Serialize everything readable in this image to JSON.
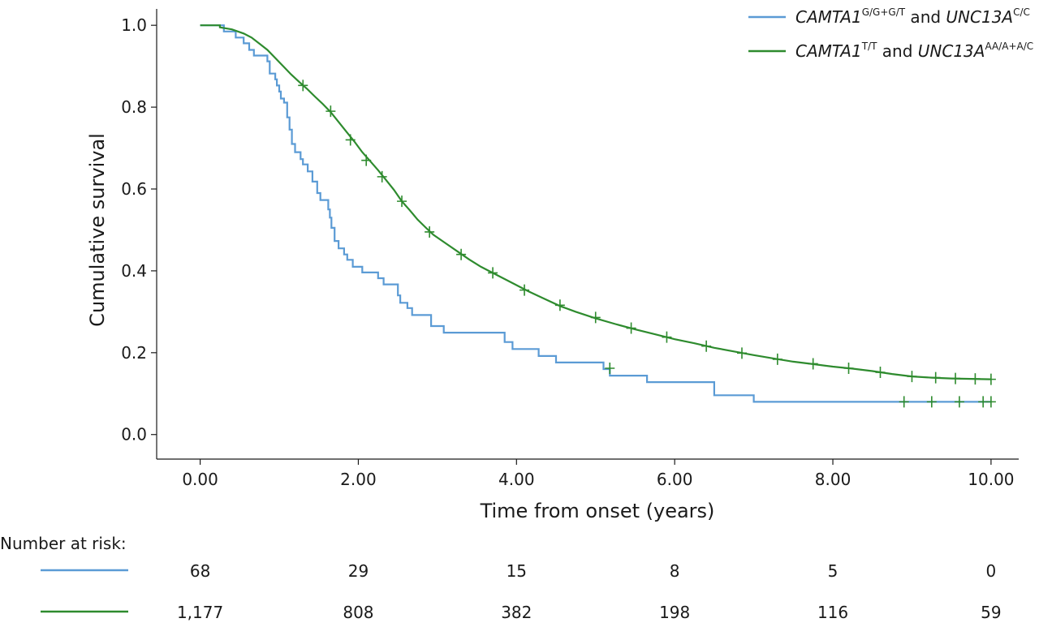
{
  "colors": {
    "series_blue": "#5b9bd5",
    "series_green": "#2e8b2e",
    "axis": "#1a1a1a",
    "background": "#ffffff"
  },
  "chart_data": {
    "type": "line",
    "subtype": "kaplan-meier-step",
    "title": "",
    "xlabel": "Time from onset (years)",
    "ylabel": "Cumulative survival",
    "xlim": [
      -0.55,
      10.35
    ],
    "ylim": [
      -0.06,
      1.04
    ],
    "x_ticks": [
      0,
      2,
      4,
      6,
      8,
      10
    ],
    "x_tick_labels": [
      "0.00",
      "2.00",
      "4.00",
      "6.00",
      "8.00",
      "10.00"
    ],
    "y_ticks": [
      0.0,
      0.2,
      0.4,
      0.6,
      0.8,
      1.0
    ],
    "y_tick_labels": [
      "0.0",
      "0.2",
      "0.4",
      "0.6",
      "0.8",
      "1.0"
    ],
    "grid": false,
    "legend_position": "top-right",
    "series": [
      {
        "id": "blue",
        "color": "#5b9bd5",
        "legend": {
          "gene1": "CAMTA1",
          "gene1_sup": "G/G+G/T",
          "joiner": " and ",
          "gene2": "UNC13A",
          "gene2_sup": "C/C"
        },
        "points": [
          [
            0,
            1.0
          ],
          [
            0.3,
            1.0
          ],
          [
            0.3,
            0.985
          ],
          [
            0.45,
            0.985
          ],
          [
            0.45,
            0.97
          ],
          [
            0.55,
            0.97
          ],
          [
            0.55,
            0.956
          ],
          [
            0.62,
            0.956
          ],
          [
            0.62,
            0.94
          ],
          [
            0.68,
            0.94
          ],
          [
            0.68,
            0.926
          ],
          [
            0.85,
            0.926
          ],
          [
            0.85,
            0.912
          ],
          [
            0.88,
            0.912
          ],
          [
            0.88,
            0.882
          ],
          [
            0.95,
            0.882
          ],
          [
            0.95,
            0.868
          ],
          [
            0.97,
            0.868
          ],
          [
            0.97,
            0.853
          ],
          [
            1.0,
            0.853
          ],
          [
            1.0,
            0.838
          ],
          [
            1.02,
            0.838
          ],
          [
            1.02,
            0.821
          ],
          [
            1.06,
            0.821
          ],
          [
            1.06,
            0.811
          ],
          [
            1.1,
            0.811
          ],
          [
            1.1,
            0.775
          ],
          [
            1.13,
            0.775
          ],
          [
            1.13,
            0.745
          ],
          [
            1.16,
            0.745
          ],
          [
            1.16,
            0.71
          ],
          [
            1.2,
            0.71
          ],
          [
            1.2,
            0.69
          ],
          [
            1.27,
            0.69
          ],
          [
            1.27,
            0.673
          ],
          [
            1.3,
            0.673
          ],
          [
            1.3,
            0.66
          ],
          [
            1.36,
            0.66
          ],
          [
            1.36,
            0.643
          ],
          [
            1.42,
            0.643
          ],
          [
            1.42,
            0.618
          ],
          [
            1.48,
            0.618
          ],
          [
            1.48,
            0.59
          ],
          [
            1.52,
            0.59
          ],
          [
            1.52,
            0.573
          ],
          [
            1.62,
            0.573
          ],
          [
            1.62,
            0.55
          ],
          [
            1.64,
            0.55
          ],
          [
            1.64,
            0.53
          ],
          [
            1.66,
            0.53
          ],
          [
            1.66,
            0.505
          ],
          [
            1.7,
            0.505
          ],
          [
            1.7,
            0.473
          ],
          [
            1.75,
            0.473
          ],
          [
            1.75,
            0.455
          ],
          [
            1.82,
            0.455
          ],
          [
            1.82,
            0.44
          ],
          [
            1.86,
            0.44
          ],
          [
            1.86,
            0.427
          ],
          [
            1.93,
            0.427
          ],
          [
            1.93,
            0.41
          ],
          [
            2.05,
            0.41
          ],
          [
            2.05,
            0.396
          ],
          [
            2.25,
            0.396
          ],
          [
            2.25,
            0.382
          ],
          [
            2.32,
            0.382
          ],
          [
            2.32,
            0.367
          ],
          [
            2.5,
            0.367
          ],
          [
            2.5,
            0.34
          ],
          [
            2.53,
            0.34
          ],
          [
            2.53,
            0.322
          ],
          [
            2.62,
            0.322
          ],
          [
            2.62,
            0.309
          ],
          [
            2.68,
            0.309
          ],
          [
            2.68,
            0.292
          ],
          [
            2.92,
            0.292
          ],
          [
            2.92,
            0.265
          ],
          [
            3.08,
            0.265
          ],
          [
            3.08,
            0.249
          ],
          [
            3.85,
            0.249
          ],
          [
            3.85,
            0.226
          ],
          [
            3.95,
            0.226
          ],
          [
            3.95,
            0.209
          ],
          [
            4.28,
            0.209
          ],
          [
            4.28,
            0.192
          ],
          [
            4.5,
            0.192
          ],
          [
            4.5,
            0.176
          ],
          [
            5.1,
            0.176
          ],
          [
            5.1,
            0.16
          ],
          [
            5.18,
            0.16
          ],
          [
            5.18,
            0.144
          ],
          [
            5.65,
            0.144
          ],
          [
            5.65,
            0.128
          ],
          [
            6.5,
            0.128
          ],
          [
            6.5,
            0.096
          ],
          [
            7.0,
            0.096
          ],
          [
            7.0,
            0.08
          ],
          [
            10.0,
            0.08
          ]
        ],
        "censor_marks": [
          [
            5.18,
            0.162
          ],
          [
            8.9,
            0.08
          ],
          [
            9.25,
            0.08
          ],
          [
            9.6,
            0.08
          ],
          [
            9.9,
            0.08
          ],
          [
            10.0,
            0.08
          ]
        ]
      },
      {
        "id": "green",
        "color": "#2e8b2e",
        "legend": {
          "gene1": "CAMTA1",
          "gene1_sup": "T/T",
          "joiner": " and ",
          "gene2": "UNC13A",
          "gene2_sup": "AA/A+A/C"
        },
        "points": [
          [
            0,
            1.0
          ],
          [
            0.25,
            1.0
          ],
          [
            0.25,
            0.995
          ],
          [
            0.4,
            0.99
          ],
          [
            0.55,
            0.98
          ],
          [
            0.65,
            0.97
          ],
          [
            0.75,
            0.955
          ],
          [
            0.85,
            0.94
          ],
          [
            0.95,
            0.92
          ],
          [
            1.05,
            0.9
          ],
          [
            1.15,
            0.88
          ],
          [
            1.25,
            0.862
          ],
          [
            1.35,
            0.845
          ],
          [
            1.45,
            0.826
          ],
          [
            1.55,
            0.808
          ],
          [
            1.65,
            0.788
          ],
          [
            1.75,
            0.764
          ],
          [
            1.85,
            0.74
          ],
          [
            1.95,
            0.716
          ],
          [
            2.05,
            0.69
          ],
          [
            2.15,
            0.668
          ],
          [
            2.25,
            0.646
          ],
          [
            2.35,
            0.622
          ],
          [
            2.45,
            0.598
          ],
          [
            2.55,
            0.57
          ],
          [
            2.65,
            0.548
          ],
          [
            2.75,
            0.525
          ],
          [
            2.85,
            0.506
          ],
          [
            2.95,
            0.488
          ],
          [
            3.1,
            0.468
          ],
          [
            3.25,
            0.448
          ],
          [
            3.4,
            0.428
          ],
          [
            3.55,
            0.41
          ],
          [
            3.75,
            0.39
          ],
          [
            3.95,
            0.37
          ],
          [
            4.15,
            0.35
          ],
          [
            4.35,
            0.332
          ],
          [
            4.55,
            0.314
          ],
          [
            4.75,
            0.3
          ],
          [
            5.0,
            0.284
          ],
          [
            5.25,
            0.27
          ],
          [
            5.5,
            0.257
          ],
          [
            5.75,
            0.245
          ],
          [
            6.0,
            0.233
          ],
          [
            6.25,
            0.223
          ],
          [
            6.5,
            0.212
          ],
          [
            6.75,
            0.203
          ],
          [
            7.0,
            0.194
          ],
          [
            7.25,
            0.186
          ],
          [
            7.5,
            0.178
          ],
          [
            7.75,
            0.172
          ],
          [
            8.0,
            0.166
          ],
          [
            8.25,
            0.161
          ],
          [
            8.5,
            0.155
          ],
          [
            8.75,
            0.148
          ],
          [
            9.0,
            0.142
          ],
          [
            9.25,
            0.139
          ],
          [
            9.5,
            0.137
          ],
          [
            9.75,
            0.136
          ],
          [
            10.0,
            0.135
          ]
        ],
        "censor_marks": [
          [
            1.3,
            0.853
          ],
          [
            1.65,
            0.79
          ],
          [
            1.9,
            0.72
          ],
          [
            2.1,
            0.67
          ],
          [
            2.3,
            0.63
          ],
          [
            2.55,
            0.57
          ],
          [
            2.9,
            0.495
          ],
          [
            3.3,
            0.44
          ],
          [
            3.7,
            0.395
          ],
          [
            4.1,
            0.353
          ],
          [
            4.55,
            0.316
          ],
          [
            5.0,
            0.286
          ],
          [
            5.45,
            0.26
          ],
          [
            5.9,
            0.238
          ],
          [
            6.4,
            0.216
          ],
          [
            6.85,
            0.199
          ],
          [
            7.3,
            0.184
          ],
          [
            7.75,
            0.173
          ],
          [
            8.2,
            0.162
          ],
          [
            8.6,
            0.152
          ],
          [
            9.0,
            0.142
          ],
          [
            9.3,
            0.139
          ],
          [
            9.55,
            0.137
          ],
          [
            9.8,
            0.136
          ],
          [
            10.0,
            0.135
          ]
        ]
      }
    ],
    "risk_table": {
      "heading": "Number at risk:",
      "rows": [
        {
          "series": "blue",
          "counts": [
            "68",
            "29",
            "15",
            "8",
            "5",
            "0"
          ]
        },
        {
          "series": "green",
          "counts": [
            "1,177",
            "808",
            "382",
            "198",
            "116",
            "59"
          ]
        }
      ]
    }
  }
}
